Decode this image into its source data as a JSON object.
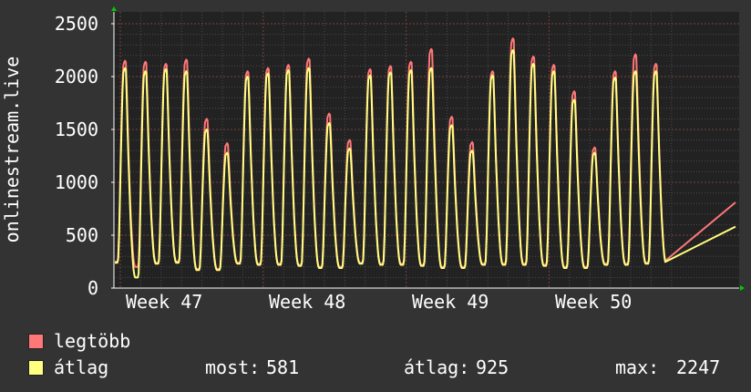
{
  "chart_data": {
    "type": "line",
    "ylabel": "onlinestream.live",
    "ylim": [
      0,
      2500
    ],
    "yticks": [
      0,
      500,
      1000,
      1500,
      2000,
      2500
    ],
    "xticks": [
      "Week 47",
      "Week 48",
      "Week 49",
      "Week 50"
    ],
    "grid": true,
    "legend_placement": "bottom-left",
    "series": [
      {
        "name": "legtöbb",
        "color": "#ff7777",
        "daily_peaks": [
          2150,
          2140,
          2120,
          2160,
          1600,
          1370,
          2050,
          2080,
          2110,
          2170,
          1650,
          1400,
          2070,
          2100,
          2140,
          2260,
          1620,
          1380,
          2050,
          2360,
          2190,
          2110,
          1860,
          1330,
          2050,
          2210,
          2120
        ],
        "daily_troughs": [
          250,
          200,
          240,
          250,
          180,
          180,
          240,
          230,
          230,
          220,
          200,
          200,
          240,
          230,
          230,
          220,
          200,
          200,
          230,
          230,
          230,
          220,
          200,
          200,
          230,
          230,
          240
        ],
        "last_value": 810
      },
      {
        "name": "átlag",
        "color": "#ffff80",
        "daily_peaks": [
          2080,
          2050,
          2070,
          2050,
          1500,
          1280,
          2000,
          2030,
          2060,
          2080,
          1560,
          1320,
          2010,
          2040,
          2060,
          2080,
          1540,
          1300,
          2010,
          2250,
          2120,
          2050,
          1780,
          1280,
          1990,
          2050,
          2050
        ],
        "daily_troughs": [
          240,
          100,
          230,
          240,
          170,
          170,
          230,
          220,
          220,
          210,
          190,
          190,
          230,
          220,
          220,
          210,
          190,
          190,
          220,
          220,
          220,
          210,
          190,
          190,
          220,
          220,
          230
        ],
        "last_value": 581
      }
    ]
  },
  "legend": {
    "max_label": "legtöbb",
    "avg_label": "átlag",
    "stats": [
      {
        "label": "most:",
        "value": "581"
      },
      {
        "label": "átlag:",
        "value": "925"
      },
      {
        "label": "max:",
        "value": "2247"
      }
    ],
    "max_color": "#ff7777",
    "avg_color": "#ffff80"
  }
}
